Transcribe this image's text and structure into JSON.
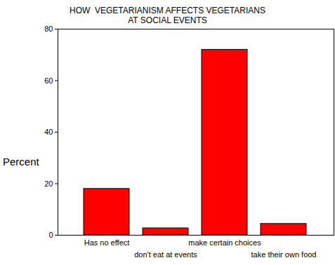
{
  "chart_data": {
    "type": "bar",
    "title": "HOW  VEGETARIANISM AFFECTS VEGETARIANS\nAT SOCIAL EVENTS",
    "y_label": "Percent",
    "categories": [
      "Has no effect",
      "don't eat at events",
      "make certain choices",
      "take their own food"
    ],
    "values": [
      18,
      2.7,
      72,
      4.4
    ],
    "color": "#ff0000",
    "ylim": [
      0,
      80
    ],
    "yticks": [
      0,
      20,
      40,
      60,
      80
    ],
    "grid": false
  }
}
